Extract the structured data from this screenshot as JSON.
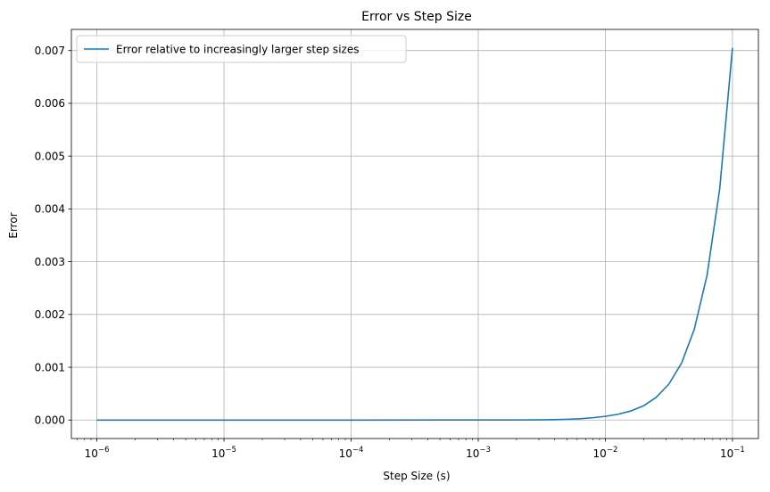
{
  "chart_data": {
    "type": "line",
    "title": "Error vs Step Size",
    "xlabel": "Step Size (s)",
    "ylabel": "Error",
    "xscale": "log",
    "xlim": [
      6.3e-07,
      0.16
    ],
    "ylim": [
      -0.00035,
      0.0074
    ],
    "grid": true,
    "legend_position": "top-left",
    "x_ticks": [
      1e-06,
      1e-05,
      0.0001,
      0.001,
      0.01,
      0.1
    ],
    "x_tick_exponents": [
      "−6",
      "−5",
      "−4",
      "−3",
      "−2",
      "−1"
    ],
    "x_tick_base": "10",
    "y_ticks": [
      0,
      0.001,
      0.002,
      0.003,
      0.004,
      0.005,
      0.006,
      0.007
    ],
    "y_tick_labels": [
      "0.000",
      "0.001",
      "0.002",
      "0.003",
      "0.004",
      "0.005",
      "0.006",
      "0.007"
    ],
    "series": [
      {
        "name": "Error relative to increasingly larger step sizes",
        "color": "#1f77b4",
        "x": [
          1e-06,
          1e-05,
          0.0001,
          0.001,
          0.002,
          0.003,
          0.004,
          0.005,
          0.0063,
          0.008,
          0.01,
          0.0126,
          0.0158,
          0.02,
          0.0251,
          0.0316,
          0.0398,
          0.0501,
          0.0631,
          0.0794,
          0.1
        ],
        "y": [
          0,
          0,
          0,
          1e-06,
          1.5e-06,
          4e-06,
          8e-06,
          1.5e-05,
          2.5e-05,
          4.5e-05,
          7e-05,
          0.00011,
          0.00017,
          0.00027,
          0.00043,
          0.00068,
          0.00108,
          0.00172,
          0.00274,
          0.00438,
          0.00705
        ]
      }
    ]
  }
}
